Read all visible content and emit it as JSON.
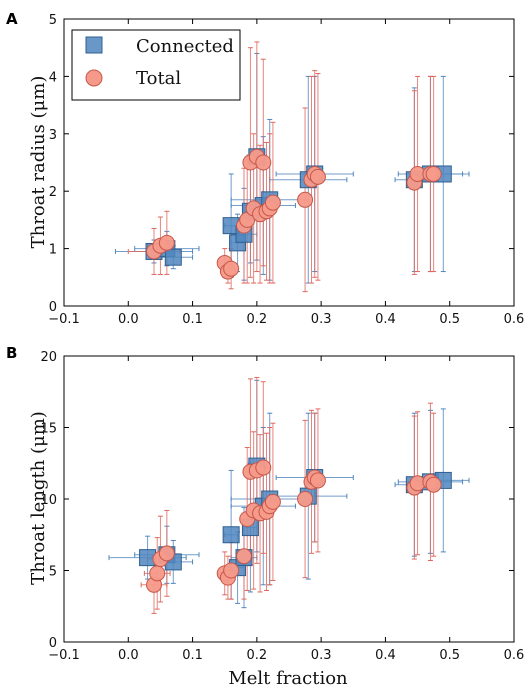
{
  "colors": {
    "connected_fill": "#4f86be",
    "connected_stroke": "#2f5f8f",
    "connected_bar": "#4f86be",
    "total_fill": "#f59a8a",
    "total_stroke": "#c7574a",
    "total_bar": "#e0675c"
  },
  "chart_data": [
    {
      "type": "scatter",
      "panel_label": "A",
      "xlabel": "",
      "ylabel": "Throat radius (μm)",
      "xlim": [
        -0.1,
        0.6
      ],
      "ylim": [
        0,
        5
      ],
      "xticks": [
        -0.1,
        0.0,
        0.1,
        0.2,
        0.3,
        0.4,
        0.5,
        0.6
      ],
      "xtick_labels": [
        "−0.1",
        "0.0",
        "0.1",
        "0.2",
        "0.3",
        "0.4",
        "0.5",
        "0.6"
      ],
      "yticks": [
        0,
        1,
        2,
        3,
        4,
        5
      ],
      "ytick_labels": [
        "0",
        "1",
        "2",
        "3",
        "4",
        "5"
      ],
      "legend": {
        "position": "top-left",
        "entries": [
          "Connected",
          "Total"
        ]
      },
      "series": [
        {
          "name": "Connected",
          "marker": "square",
          "points": [
            {
              "x": 0.04,
              "y": 0.95,
              "xerr": 0.06,
              "yerr": 0.2
            },
            {
              "x": 0.06,
              "y": 1.0,
              "xerr": 0.05,
              "yerr": 0.3
            },
            {
              "x": 0.07,
              "y": 0.85,
              "xerr": 0.03,
              "yerr": 0.2
            },
            {
              "x": 0.16,
              "y": 1.4,
              "xerr": 0.01,
              "yerr": 0.9
            },
            {
              "x": 0.17,
              "y": 1.1,
              "xerr": 0.01,
              "yerr": 0.5
            },
            {
              "x": 0.18,
              "y": 1.25,
              "xerr": 0.02,
              "yerr": 0.8
            },
            {
              "x": 0.19,
              "y": 1.65,
              "xerr": 0.01,
              "yerr": 0.9
            },
            {
              "x": 0.2,
              "y": 2.6,
              "xerr": 0.015,
              "yerr": 1.8
            },
            {
              "x": 0.21,
              "y": 1.75,
              "xerr": 0.05,
              "yerr": 1.2
            },
            {
              "x": 0.22,
              "y": 1.85,
              "xerr": 0.06,
              "yerr": 1.4
            },
            {
              "x": 0.28,
              "y": 2.2,
              "xerr": 0.06,
              "yerr": 1.8
            },
            {
              "x": 0.29,
              "y": 2.3,
              "xerr": 0.06,
              "yerr": 1.7
            },
            {
              "x": 0.445,
              "y": 2.2,
              "xerr": 0.03,
              "yerr": 1.6
            },
            {
              "x": 0.47,
              "y": 2.3,
              "xerr": 0.05,
              "yerr": 1.7
            },
            {
              "x": 0.49,
              "y": 2.3,
              "xerr": 0.04,
              "yerr": 1.7
            }
          ]
        },
        {
          "name": "Total",
          "marker": "circle",
          "points": [
            {
              "x": 0.04,
              "y": 0.95,
              "xerr": 0.04,
              "yerr": 0.4
            },
            {
              "x": 0.05,
              "y": 1.05,
              "xerr": 0.02,
              "yerr": 0.5
            },
            {
              "x": 0.06,
              "y": 1.1,
              "xerr": 0.01,
              "yerr": 0.55
            },
            {
              "x": 0.15,
              "y": 0.75,
              "xerr": 0.01,
              "yerr": 0.25
            },
            {
              "x": 0.155,
              "y": 0.6,
              "xerr": 0.01,
              "yerr": 0.2
            },
            {
              "x": 0.16,
              "y": 0.65,
              "xerr": 0.01,
              "yerr": 0.35
            },
            {
              "x": 0.18,
              "y": 1.4,
              "xerr": 0.01,
              "yerr": 1.0
            },
            {
              "x": 0.185,
              "y": 1.5,
              "xerr": 0.01,
              "yerr": 1.1
            },
            {
              "x": 0.19,
              "y": 2.5,
              "xerr": 0.01,
              "yerr": 2.0
            },
            {
              "x": 0.195,
              "y": 1.7,
              "xerr": 0.01,
              "yerr": 1.3
            },
            {
              "x": 0.2,
              "y": 2.6,
              "xerr": 0.01,
              "yerr": 2.0
            },
            {
              "x": 0.205,
              "y": 1.6,
              "xerr": 0.01,
              "yerr": 1.2
            },
            {
              "x": 0.21,
              "y": 2.5,
              "xerr": 0.01,
              "yerr": 1.8
            },
            {
              "x": 0.215,
              "y": 1.65,
              "xerr": 0.01,
              "yerr": 1.2
            },
            {
              "x": 0.22,
              "y": 1.7,
              "xerr": 0.01,
              "yerr": 1.3
            },
            {
              "x": 0.225,
              "y": 1.8,
              "xerr": 0.01,
              "yerr": 1.4
            },
            {
              "x": 0.275,
              "y": 1.85,
              "xerr": 0.01,
              "yerr": 1.6
            },
            {
              "x": 0.285,
              "y": 2.2,
              "xerr": 0.01,
              "yerr": 1.8
            },
            {
              "x": 0.29,
              "y": 2.3,
              "xerr": 0.01,
              "yerr": 1.8
            },
            {
              "x": 0.295,
              "y": 2.25,
              "xerr": 0.01,
              "yerr": 1.8
            },
            {
              "x": 0.445,
              "y": 2.15,
              "xerr": 0.01,
              "yerr": 1.6
            },
            {
              "x": 0.45,
              "y": 2.3,
              "xerr": 0.01,
              "yerr": 1.7
            },
            {
              "x": 0.47,
              "y": 2.3,
              "xerr": 0.01,
              "yerr": 1.7
            },
            {
              "x": 0.475,
              "y": 2.3,
              "xerr": 0.01,
              "yerr": 1.7
            }
          ]
        }
      ]
    },
    {
      "type": "scatter",
      "panel_label": "B",
      "xlabel": "Melt fraction",
      "ylabel": "Throat length (μm)",
      "xlim": [
        -0.1,
        0.6
      ],
      "ylim": [
        0,
        20
      ],
      "xticks": [
        -0.1,
        0.0,
        0.1,
        0.2,
        0.3,
        0.4,
        0.5,
        0.6
      ],
      "xtick_labels": [
        "−0.1",
        "0.0",
        "0.1",
        "0.2",
        "0.3",
        "0.4",
        "0.5",
        "0.6"
      ],
      "yticks": [
        0,
        5,
        10,
        15,
        20
      ],
      "ytick_labels": [
        "0",
        "5",
        "10",
        "15",
        "20"
      ],
      "series": [
        {
          "name": "Connected",
          "marker": "square",
          "points": [
            {
              "x": 0.03,
              "y": 5.9,
              "xerr": 0.06,
              "yerr": 1.5
            },
            {
              "x": 0.06,
              "y": 6.1,
              "xerr": 0.05,
              "yerr": 2.0
            },
            {
              "x": 0.07,
              "y": 5.6,
              "xerr": 0.03,
              "yerr": 1.5
            },
            {
              "x": 0.16,
              "y": 7.5,
              "xerr": 0.01,
              "yerr": 4.5
            },
            {
              "x": 0.17,
              "y": 5.2,
              "xerr": 0.01,
              "yerr": 2.5
            },
            {
              "x": 0.18,
              "y": 5.9,
              "xerr": 0.02,
              "yerr": 3.5
            },
            {
              "x": 0.19,
              "y": 8.0,
              "xerr": 0.01,
              "yerr": 4.5
            },
            {
              "x": 0.2,
              "y": 12.3,
              "xerr": 0.015,
              "yerr": 6.0
            },
            {
              "x": 0.21,
              "y": 9.5,
              "xerr": 0.05,
              "yerr": 5.5
            },
            {
              "x": 0.22,
              "y": 10.0,
              "xerr": 0.06,
              "yerr": 6.0
            },
            {
              "x": 0.28,
              "y": 10.2,
              "xerr": 0.06,
              "yerr": 5.8
            },
            {
              "x": 0.29,
              "y": 11.5,
              "xerr": 0.06,
              "yerr": 4.5
            },
            {
              "x": 0.445,
              "y": 11.0,
              "xerr": 0.03,
              "yerr": 5.0
            },
            {
              "x": 0.47,
              "y": 11.2,
              "xerr": 0.05,
              "yerr": 5.0
            },
            {
              "x": 0.49,
              "y": 11.3,
              "xerr": 0.04,
              "yerr": 5.0
            }
          ]
        },
        {
          "name": "Total",
          "marker": "circle",
          "points": [
            {
              "x": 0.04,
              "y": 4.0,
              "xerr": 0.02,
              "yerr": 2.0
            },
            {
              "x": 0.045,
              "y": 4.8,
              "xerr": 0.02,
              "yerr": 2.5
            },
            {
              "x": 0.05,
              "y": 5.8,
              "xerr": 0.02,
              "yerr": 3.0
            },
            {
              "x": 0.06,
              "y": 6.2,
              "xerr": 0.01,
              "yerr": 3.0
            },
            {
              "x": 0.15,
              "y": 4.8,
              "xerr": 0.01,
              "yerr": 1.5
            },
            {
              "x": 0.155,
              "y": 4.5,
              "xerr": 0.01,
              "yerr": 1.5
            },
            {
              "x": 0.16,
              "y": 5.0,
              "xerr": 0.01,
              "yerr": 2.0
            },
            {
              "x": 0.18,
              "y": 6.0,
              "xerr": 0.01,
              "yerr": 3.0
            },
            {
              "x": 0.185,
              "y": 8.6,
              "xerr": 0.01,
              "yerr": 5.0
            },
            {
              "x": 0.19,
              "y": 11.9,
              "xerr": 0.01,
              "yerr": 6.5
            },
            {
              "x": 0.195,
              "y": 9.2,
              "xerr": 0.01,
              "yerr": 5.5
            },
            {
              "x": 0.2,
              "y": 12.0,
              "xerr": 0.01,
              "yerr": 6.5
            },
            {
              "x": 0.205,
              "y": 9.0,
              "xerr": 0.01,
              "yerr": 5.5
            },
            {
              "x": 0.21,
              "y": 12.2,
              "xerr": 0.01,
              "yerr": 6.0
            },
            {
              "x": 0.215,
              "y": 9.1,
              "xerr": 0.01,
              "yerr": 5.5
            },
            {
              "x": 0.22,
              "y": 9.5,
              "xerr": 0.01,
              "yerr": 5.5
            },
            {
              "x": 0.225,
              "y": 9.8,
              "xerr": 0.01,
              "yerr": 5.5
            },
            {
              "x": 0.275,
              "y": 10.0,
              "xerr": 0.01,
              "yerr": 5.5
            },
            {
              "x": 0.285,
              "y": 11.2,
              "xerr": 0.01,
              "yerr": 5.0
            },
            {
              "x": 0.29,
              "y": 11.5,
              "xerr": 0.01,
              "yerr": 4.5
            },
            {
              "x": 0.295,
              "y": 11.3,
              "xerr": 0.01,
              "yerr": 5.0
            },
            {
              "x": 0.445,
              "y": 10.8,
              "xerr": 0.01,
              "yerr": 5.0
            },
            {
              "x": 0.45,
              "y": 11.1,
              "xerr": 0.01,
              "yerr": 5.0
            },
            {
              "x": 0.47,
              "y": 11.2,
              "xerr": 0.01,
              "yerr": 5.5
            },
            {
              "x": 0.475,
              "y": 11.0,
              "xerr": 0.01,
              "yerr": 5.0
            }
          ]
        }
      ]
    }
  ]
}
